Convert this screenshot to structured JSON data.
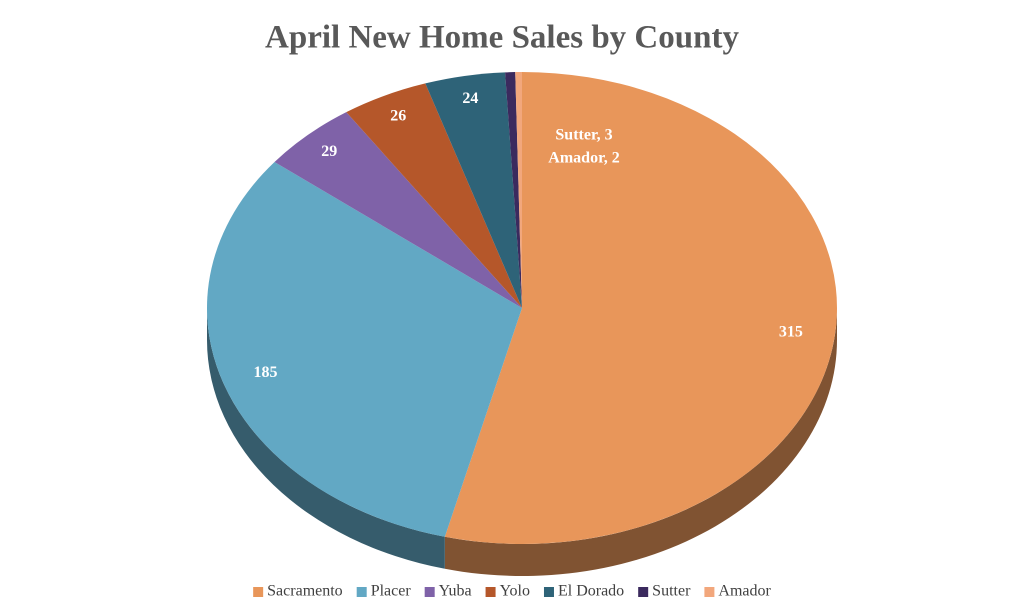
{
  "chart_data": {
    "type": "pie3d",
    "title": "April New Home Sales by County",
    "categories": [
      "Sacramento",
      "Placer",
      "Yuba",
      "Yolo",
      "El Dorado",
      "Sutter",
      "Amador"
    ],
    "values": [
      315,
      185,
      29,
      26,
      24,
      3,
      2
    ],
    "value_labels": [
      "315",
      "185",
      "29",
      "26",
      "24",
      "Sutter, 3",
      "Amador, 2"
    ],
    "colors": [
      "#E8965A",
      "#62A8C4",
      "#7F62A8",
      "#B5572A",
      "#2E6378",
      "#3B2A5E",
      "#F2A77C"
    ],
    "legend": "bottom"
  }
}
